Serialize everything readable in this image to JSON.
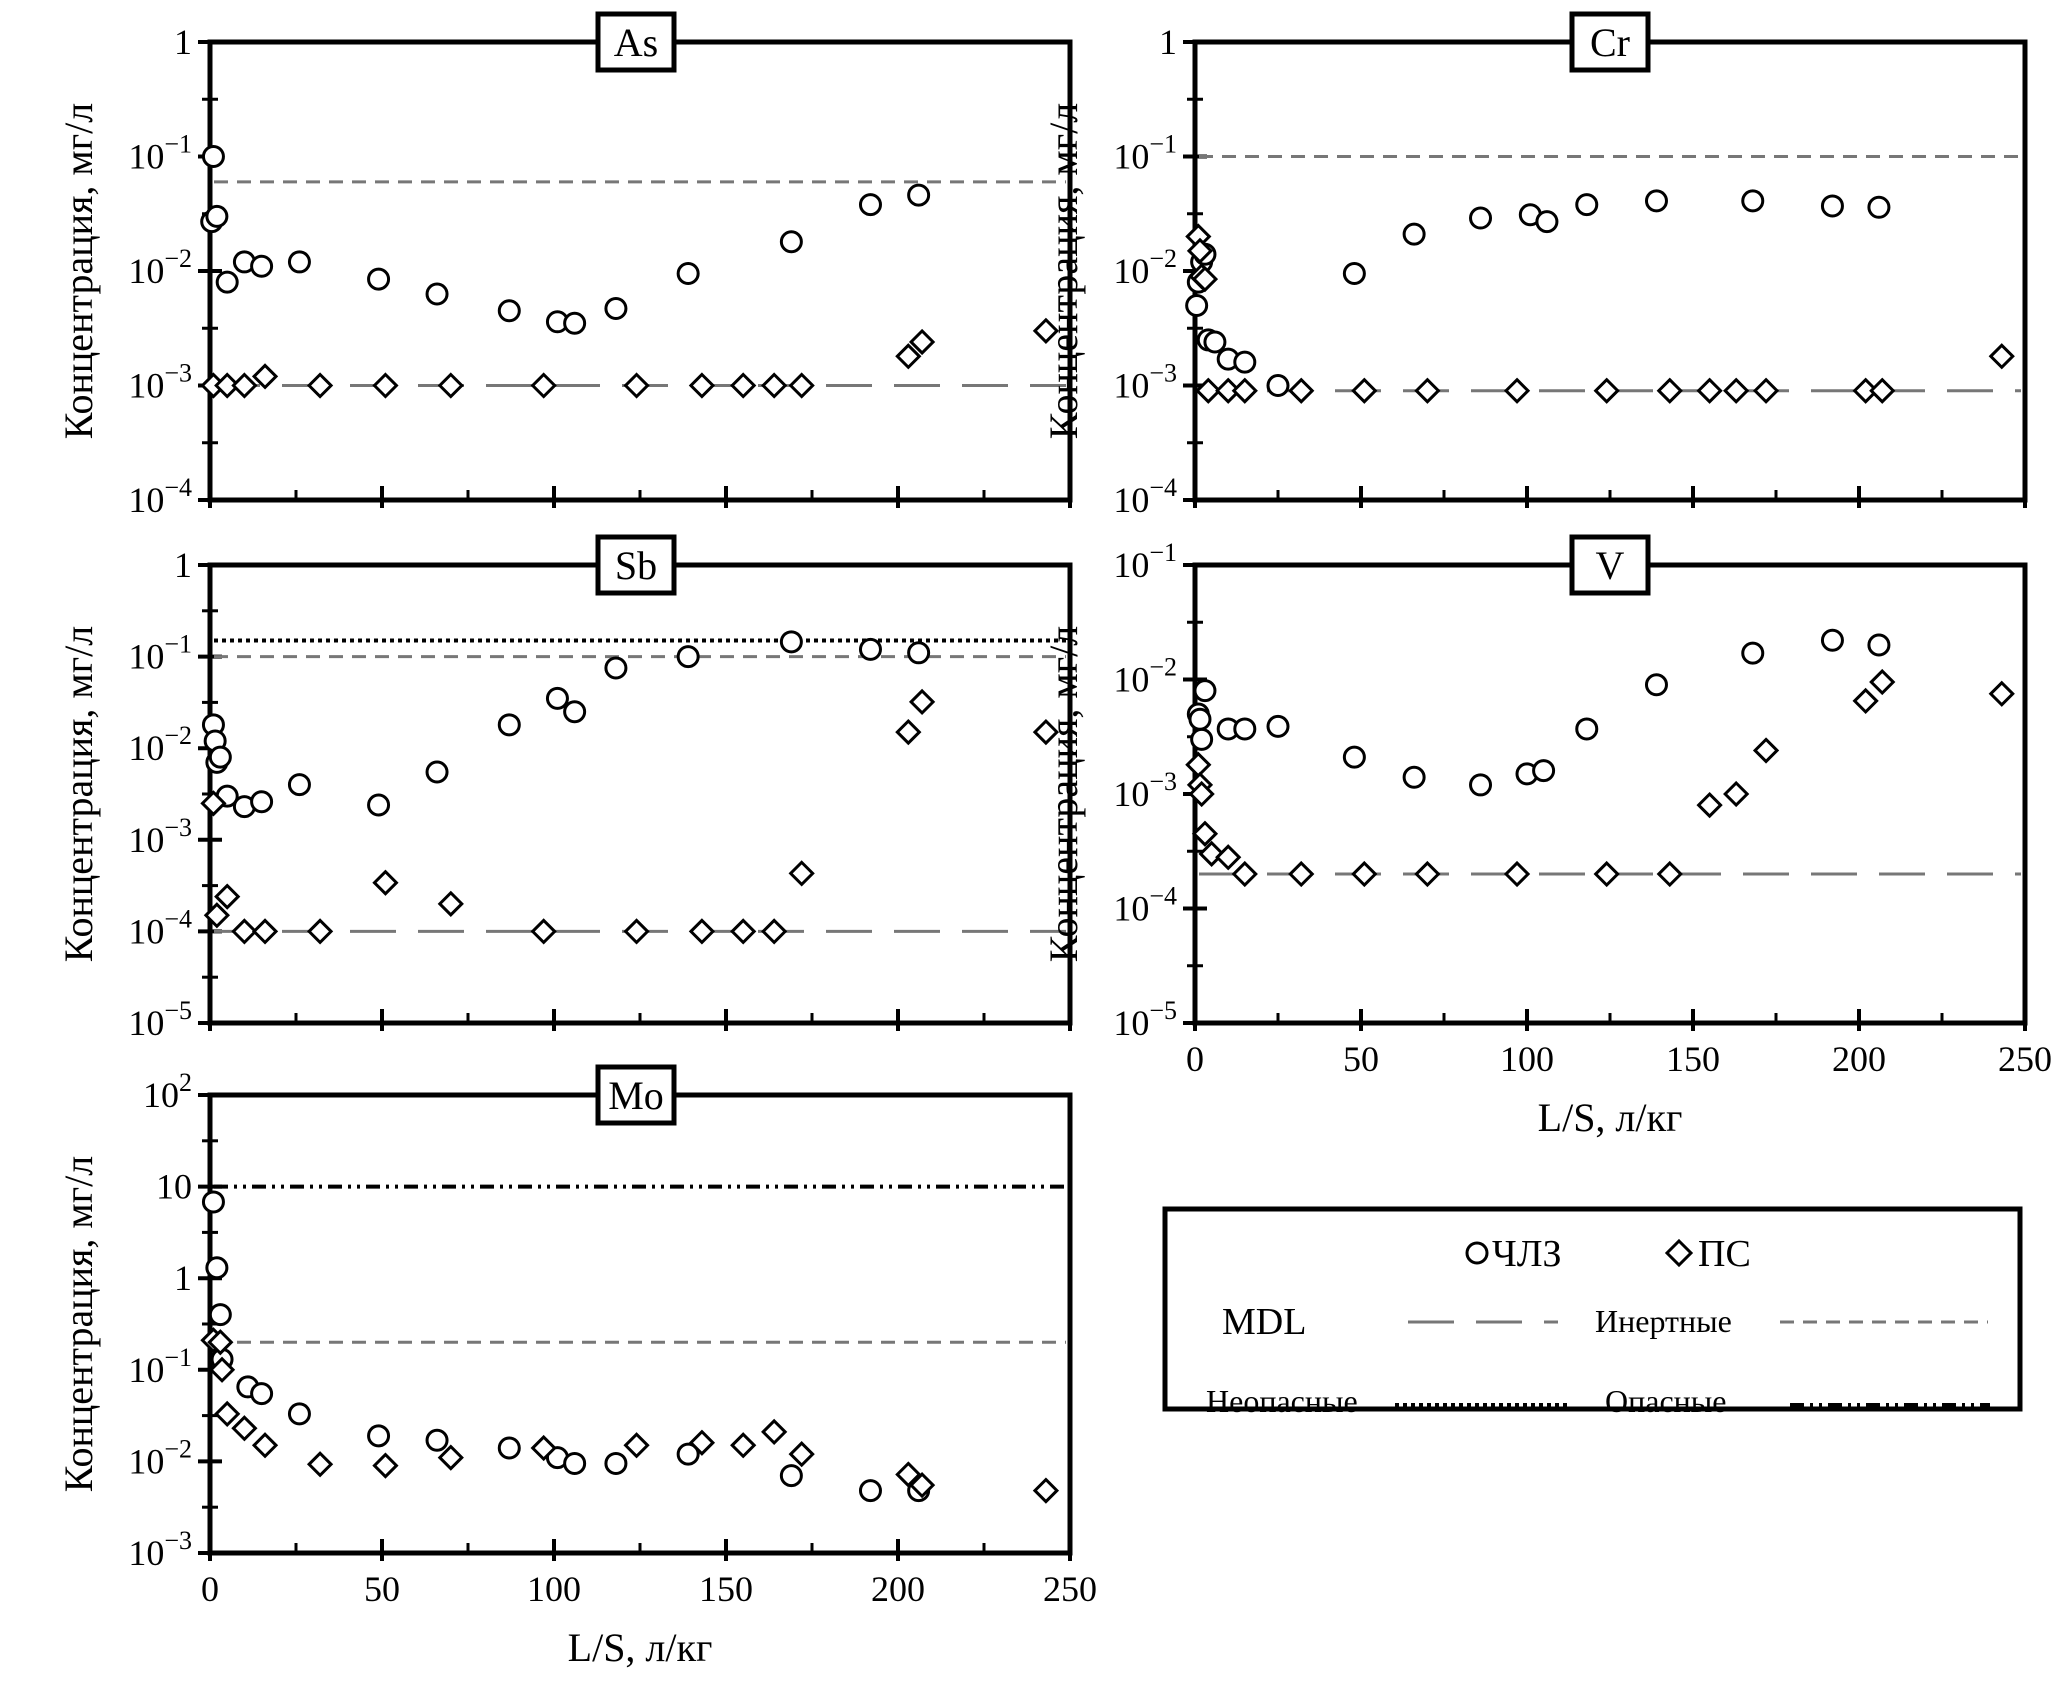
{
  "legend": {
    "series_labels": [
      "ЧЛЗ",
      "ПС"
    ],
    "line_labels": {
      "mdl": "MDL",
      "inert": "Инертные",
      "nonhazard": "Неопасные",
      "hazard": "Опасные"
    }
  },
  "chart_data": [
    {
      "type": "scatter",
      "title": "As",
      "xlabel": "",
      "ylabel": "Концентрация, мг/л",
      "xlim": [
        0,
        250
      ],
      "ylim_log10": [
        -4,
        0
      ],
      "log_y": true,
      "y_ticks": [
        {
          "value": 1,
          "base": "1",
          "exp": ""
        },
        {
          "value": 0.1,
          "base": "10",
          "exp": "−1"
        },
        {
          "value": 0.01,
          "base": "10",
          "exp": "−2"
        },
        {
          "value": 0.001,
          "base": "10",
          "exp": "−3"
        },
        {
          "value": 0.0001,
          "base": "10",
          "exp": "−4"
        }
      ],
      "x_tick_values": [
        0,
        50,
        100,
        150,
        200,
        250
      ],
      "x_tick_labels": [],
      "show_x_tick_labels": false,
      "hlines": [
        {
          "kind": "inert",
          "y": 0.06
        },
        {
          "kind": "mdl",
          "y": 0.001
        }
      ],
      "series": [
        {
          "name": "ЧЛЗ",
          "marker": "circle",
          "points": [
            [
              1,
              0.1
            ],
            [
              0.5,
              0.027
            ],
            [
              2,
              0.03
            ],
            [
              5,
              0.008
            ],
            [
              10,
              0.012
            ],
            [
              15,
              0.011
            ],
            [
              26,
              0.012
            ],
            [
              49,
              0.0085
            ],
            [
              66,
              0.0063
            ],
            [
              87,
              0.0045
            ],
            [
              101,
              0.0036
            ],
            [
              106,
              0.0035
            ],
            [
              118,
              0.0047
            ],
            [
              139,
              0.0095
            ],
            [
              169,
              0.018
            ],
            [
              192,
              0.038
            ],
            [
              206,
              0.046
            ]
          ]
        },
        {
          "name": "ПС",
          "marker": "diamond",
          "points": [
            [
              1,
              0.001
            ],
            [
              5,
              0.001
            ],
            [
              10,
              0.001
            ],
            [
              16,
              0.0012
            ],
            [
              32,
              0.001
            ],
            [
              51,
              0.001
            ],
            [
              70,
              0.001
            ],
            [
              97,
              0.001
            ],
            [
              124,
              0.001
            ],
            [
              143,
              0.001
            ],
            [
              155,
              0.001
            ],
            [
              164,
              0.001
            ],
            [
              172,
              0.001
            ],
            [
              203,
              0.0018
            ],
            [
              207,
              0.0024
            ],
            [
              243,
              0.003
            ]
          ]
        }
      ]
    },
    {
      "type": "scatter",
      "title": "Cr",
      "xlabel": "",
      "ylabel": "Концентрация, мг/л",
      "xlim": [
        0,
        250
      ],
      "ylim_log10": [
        -4,
        0
      ],
      "log_y": true,
      "y_ticks": [
        {
          "value": 1,
          "base": "1",
          "exp": ""
        },
        {
          "value": 0.1,
          "base": "10",
          "exp": "−1"
        },
        {
          "value": 0.01,
          "base": "10",
          "exp": "−2"
        },
        {
          "value": 0.001,
          "base": "10",
          "exp": "−3"
        },
        {
          "value": 0.0001,
          "base": "10",
          "exp": "−4"
        }
      ],
      "x_tick_values": [
        0,
        50,
        100,
        150,
        200,
        250
      ],
      "x_tick_labels": [],
      "show_x_tick_labels": false,
      "hlines": [
        {
          "kind": "inert",
          "y": 0.1
        },
        {
          "kind": "mdl",
          "y": 0.0009
        }
      ],
      "series": [
        {
          "name": "ЧЛЗ",
          "marker": "circle",
          "points": [
            [
              0.5,
              0.005
            ],
            [
              1,
              0.008
            ],
            [
              2,
              0.012
            ],
            [
              3,
              0.014
            ],
            [
              4,
              0.0025
            ],
            [
              6,
              0.0024
            ],
            [
              10,
              0.0017
            ],
            [
              15,
              0.0016
            ],
            [
              25,
              0.001
            ],
            [
              48,
              0.0095
            ],
            [
              66,
              0.021
            ],
            [
              86,
              0.029
            ],
            [
              101,
              0.031
            ],
            [
              106,
              0.027
            ],
            [
              118,
              0.038
            ],
            [
              139,
              0.041
            ],
            [
              168,
              0.041
            ],
            [
              192,
              0.037
            ],
            [
              206,
              0.036
            ]
          ]
        },
        {
          "name": "ПС",
          "marker": "diamond",
          "points": [
            [
              1,
              0.02
            ],
            [
              1.5,
              0.015
            ],
            [
              2,
              0.009
            ],
            [
              3,
              0.0085
            ],
            [
              4,
              0.0009
            ],
            [
              10,
              0.0009
            ],
            [
              15,
              0.0009
            ],
            [
              32,
              0.0009
            ],
            [
              51,
              0.0009
            ],
            [
              70,
              0.0009
            ],
            [
              97,
              0.0009
            ],
            [
              124,
              0.0009
            ],
            [
              143,
              0.0009
            ],
            [
              155,
              0.0009
            ],
            [
              163,
              0.0009
            ],
            [
              172,
              0.0009
            ],
            [
              202,
              0.0009
            ],
            [
              207,
              0.0009
            ],
            [
              243,
              0.0018
            ]
          ]
        }
      ]
    },
    {
      "type": "scatter",
      "title": "Sb",
      "xlabel": "",
      "ylabel": "Концентрация, мг/л",
      "xlim": [
        0,
        250
      ],
      "ylim_log10": [
        -5,
        0
      ],
      "log_y": true,
      "y_ticks": [
        {
          "value": 1,
          "base": "1",
          "exp": ""
        },
        {
          "value": 0.1,
          "base": "10",
          "exp": "−1"
        },
        {
          "value": 0.01,
          "base": "10",
          "exp": "−2"
        },
        {
          "value": 0.001,
          "base": "10",
          "exp": "−3"
        },
        {
          "value": 0.0001,
          "base": "10",
          "exp": "−4"
        },
        {
          "value": 1e-05,
          "base": "10",
          "exp": "−5"
        }
      ],
      "x_tick_values": [
        0,
        50,
        100,
        150,
        200,
        250
      ],
      "x_tick_labels": [],
      "show_x_tick_labels": false,
      "hlines": [
        {
          "kind": "nonhazard",
          "y": 0.15
        },
        {
          "kind": "inert",
          "y": 0.1
        },
        {
          "kind": "mdl",
          "y": 0.0001
        }
      ],
      "series": [
        {
          "name": "ЧЛЗ",
          "marker": "circle",
          "points": [
            [
              1,
              0.018
            ],
            [
              1.5,
              0.012
            ],
            [
              2,
              0.007
            ],
            [
              3,
              0.008
            ],
            [
              5,
              0.003
            ],
            [
              10,
              0.0023
            ],
            [
              15,
              0.0026
            ],
            [
              26,
              0.004
            ],
            [
              49,
              0.0024
            ],
            [
              66,
              0.0055
            ],
            [
              87,
              0.018
            ],
            [
              101,
              0.035
            ],
            [
              106,
              0.025
            ],
            [
              118,
              0.075
            ],
            [
              139,
              0.1
            ],
            [
              169,
              0.145
            ],
            [
              192,
              0.12
            ],
            [
              206,
              0.11
            ]
          ]
        },
        {
          "name": "ПС",
          "marker": "diamond",
          "points": [
            [
              1,
              0.0025
            ],
            [
              2,
              0.00015
            ],
            [
              5,
              0.00024
            ],
            [
              10,
              0.0001
            ],
            [
              16,
              0.0001
            ],
            [
              32,
              0.0001
            ],
            [
              51,
              0.00034
            ],
            [
              70,
              0.0002
            ],
            [
              97,
              0.0001
            ],
            [
              124,
              0.0001
            ],
            [
              143,
              0.0001
            ],
            [
              155,
              0.0001
            ],
            [
              164,
              0.0001
            ],
            [
              172,
              0.00043
            ],
            [
              203,
              0.015
            ],
            [
              207,
              0.032
            ],
            [
              243,
              0.015
            ]
          ]
        }
      ]
    },
    {
      "type": "scatter",
      "title": "V",
      "xlabel": "L/S, л/кг",
      "ylabel": "Концентрация, мг/л",
      "xlim": [
        0,
        250
      ],
      "ylim_log10": [
        -5,
        -1
      ],
      "log_y": true,
      "y_ticks": [
        {
          "value": 0.1,
          "base": "10",
          "exp": "−1"
        },
        {
          "value": 0.01,
          "base": "10",
          "exp": "−2"
        },
        {
          "value": 0.001,
          "base": "10",
          "exp": "−3"
        },
        {
          "value": 0.0001,
          "base": "10",
          "exp": "−4"
        },
        {
          "value": 1e-05,
          "base": "10",
          "exp": "−5"
        }
      ],
      "x_tick_values": [
        0,
        50,
        100,
        150,
        200,
        250
      ],
      "x_tick_labels": [
        "0",
        "50",
        "100",
        "150",
        "200",
        "250"
      ],
      "show_x_tick_labels": true,
      "hlines": [
        {
          "kind": "mdl",
          "y": 0.0002
        }
      ],
      "series": [
        {
          "name": "ЧЛЗ",
          "marker": "circle",
          "points": [
            [
              1,
              0.005
            ],
            [
              1.5,
              0.0045
            ],
            [
              2,
              0.003
            ],
            [
              3,
              0.008
            ],
            [
              10,
              0.0037
            ],
            [
              15,
              0.0037
            ],
            [
              25,
              0.0039
            ],
            [
              48,
              0.0021
            ],
            [
              66,
              0.0014
            ],
            [
              86,
              0.0012
            ],
            [
              100,
              0.0015
            ],
            [
              105,
              0.0016
            ],
            [
              118,
              0.0037
            ],
            [
              139,
              0.009
            ],
            [
              168,
              0.017
            ],
            [
              192,
              0.022
            ],
            [
              206,
              0.02
            ]
          ]
        },
        {
          "name": "ПС",
          "marker": "diamond",
          "points": [
            [
              1,
              0.0018
            ],
            [
              1.5,
              0.0012
            ],
            [
              2,
              0.001
            ],
            [
              3,
              0.00045
            ],
            [
              5,
              0.0003
            ],
            [
              10,
              0.00028
            ],
            [
              15,
              0.0002
            ],
            [
              32,
              0.0002
            ],
            [
              51,
              0.0002
            ],
            [
              70,
              0.0002
            ],
            [
              97,
              0.0002
            ],
            [
              124,
              0.0002
            ],
            [
              143,
              0.0002
            ],
            [
              155,
              0.0008
            ],
            [
              163,
              0.001
            ],
            [
              172,
              0.0024
            ],
            [
              202,
              0.0065
            ],
            [
              207,
              0.0095
            ],
            [
              243,
              0.0075
            ]
          ]
        }
      ]
    },
    {
      "type": "scatter",
      "title": "Mo",
      "xlabel": "L/S, л/кг",
      "ylabel": "Концентрация, мг/л",
      "xlim": [
        0,
        250
      ],
      "ylim_log10": [
        -3,
        2
      ],
      "log_y": true,
      "y_ticks": [
        {
          "value": 100,
          "base": "10",
          "exp": "2"
        },
        {
          "value": 10,
          "base": "10",
          "exp": ""
        },
        {
          "value": 1,
          "base": "1",
          "exp": ""
        },
        {
          "value": 0.1,
          "base": "10",
          "exp": "−1"
        },
        {
          "value": 0.01,
          "base": "10",
          "exp": "−2"
        },
        {
          "value": 0.001,
          "base": "10",
          "exp": "−3"
        }
      ],
      "x_tick_values": [
        0,
        50,
        100,
        150,
        200,
        250
      ],
      "x_tick_labels": [
        "0",
        "50",
        "100",
        "150",
        "200",
        "250"
      ],
      "show_x_tick_labels": true,
      "hlines": [
        {
          "kind": "hazard",
          "y": 10
        },
        {
          "kind": "inert",
          "y": 0.2
        }
      ],
      "series": [
        {
          "name": "ЧЛЗ",
          "marker": "circle",
          "points": [
            [
              1,
              6.8
            ],
            [
              2,
              1.3
            ],
            [
              3,
              0.4
            ],
            [
              3.5,
              0.13
            ],
            [
              11,
              0.065
            ],
            [
              15,
              0.055
            ],
            [
              26,
              0.033
            ],
            [
              49,
              0.019
            ],
            [
              66,
              0.017
            ],
            [
              87,
              0.014
            ],
            [
              101,
              0.011
            ],
            [
              106,
              0.0095
            ],
            [
              118,
              0.0095
            ],
            [
              139,
              0.012
            ],
            [
              169,
              0.007
            ],
            [
              192,
              0.0048
            ],
            [
              206,
              0.0048
            ]
          ]
        },
        {
          "name": "ПС",
          "marker": "diamond",
          "points": [
            [
              1,
              0.21
            ],
            [
              3,
              0.2
            ],
            [
              3.5,
              0.1
            ],
            [
              5,
              0.033
            ],
            [
              10,
              0.023
            ],
            [
              16,
              0.015
            ],
            [
              32,
              0.0093
            ],
            [
              51,
              0.009
            ],
            [
              70,
              0.011
            ],
            [
              97,
              0.014
            ],
            [
              124,
              0.015
            ],
            [
              143,
              0.016
            ],
            [
              155,
              0.015
            ],
            [
              164,
              0.021
            ],
            [
              172,
              0.012
            ],
            [
              203,
              0.0072
            ],
            [
              207,
              0.0055
            ],
            [
              243,
              0.0048
            ]
          ]
        }
      ]
    }
  ]
}
